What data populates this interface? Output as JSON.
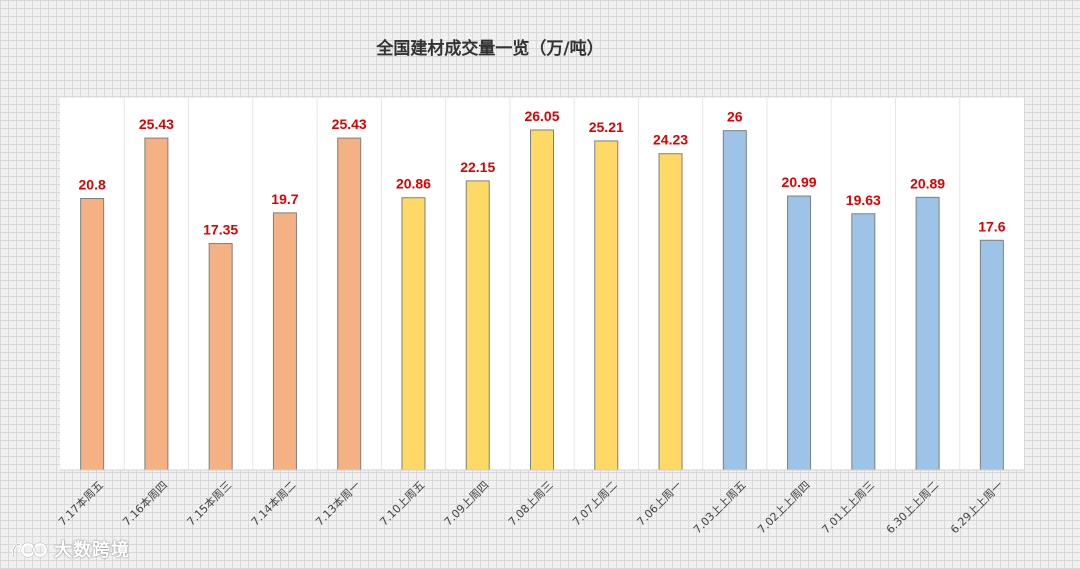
{
  "chart_data": {
    "type": "bar",
    "title": "全国建材成交量一览（万/吨）",
    "xlabel": "",
    "ylabel": "",
    "ylim": [
      0,
      28.5
    ],
    "grid": false,
    "legend": "none",
    "categories": [
      "7.17本周五",
      "7.16本周四",
      "7.15本周三",
      "7.14本周二",
      "7.13本周一",
      "7.10上周五",
      "7.09上周四",
      "7.08上周三",
      "7.07上周二",
      "7.06上周一",
      "7.03上上周五",
      "7.02上上周四",
      "7.01上上周三",
      "6.30上上周二",
      "6.29上上周一"
    ],
    "values": [
      20.8,
      25.43,
      17.35,
      19.7,
      25.43,
      20.86,
      22.15,
      26.05,
      25.21,
      24.23,
      26,
      20.99,
      19.63,
      20.89,
      17.6
    ],
    "bar_colors": [
      "#f4b183",
      "#f4b183",
      "#f4b183",
      "#f4b183",
      "#f4b183",
      "#ffd966",
      "#ffd966",
      "#ffd966",
      "#ffd966",
      "#ffd966",
      "#9dc3e6",
      "#9dc3e6",
      "#9dc3e6",
      "#9dc3e6",
      "#9dc3e6"
    ],
    "label_color": "#e00000"
  },
  "watermark": {
    "text": "大数跨境",
    "icon": "logo-icon"
  }
}
